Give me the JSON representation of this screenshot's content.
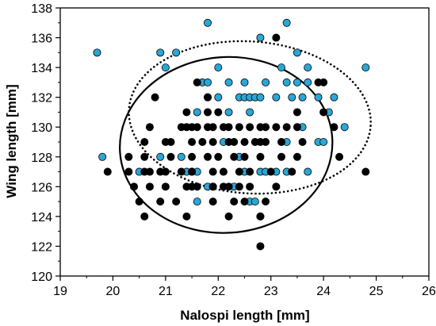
{
  "chart_data": {
    "type": "scatter",
    "title": "",
    "xlabel": "Nalospi length [mm]",
    "ylabel": "Wing length [mm]",
    "xlim": [
      19,
      26
    ],
    "ylim": [
      120,
      138
    ],
    "xticks": [
      19,
      20,
      21,
      22,
      23,
      24,
      25,
      26
    ],
    "yticks": [
      120,
      122,
      124,
      126,
      128,
      130,
      132,
      134,
      136,
      138
    ],
    "legend": "none",
    "grid": false,
    "series": [
      {
        "color": "#2aa7d6",
        "marker": "circle",
        "points": [
          [
            19.7,
            135
          ],
          [
            19.8,
            128
          ],
          [
            20.9,
            135
          ],
          [
            21.0,
            134
          ],
          [
            21.2,
            135
          ],
          [
            21.8,
            137
          ],
          [
            22.0,
            134
          ],
          [
            22.8,
            136
          ],
          [
            23.3,
            137
          ],
          [
            23.5,
            135
          ],
          [
            24.8,
            134
          ],
          [
            23.2,
            134
          ],
          [
            23.7,
            134
          ],
          [
            21.7,
            133
          ],
          [
            21.8,
            133
          ],
          [
            22.2,
            133
          ],
          [
            22.5,
            133
          ],
          [
            22.9,
            133
          ],
          [
            23.3,
            133
          ],
          [
            23.5,
            133
          ],
          [
            23.7,
            133
          ],
          [
            21.8,
            132
          ],
          [
            22.0,
            132
          ],
          [
            22.4,
            132
          ],
          [
            22.5,
            132
          ],
          [
            22.6,
            132
          ],
          [
            22.7,
            132
          ],
          [
            22.8,
            132
          ],
          [
            23.1,
            132
          ],
          [
            23.4,
            132
          ],
          [
            23.6,
            132
          ],
          [
            23.9,
            132
          ],
          [
            24.1,
            131
          ],
          [
            21.6,
            131
          ],
          [
            22.2,
            131
          ],
          [
            22.6,
            131
          ],
          [
            20.9,
            128
          ],
          [
            21.3,
            128
          ],
          [
            21.4,
            127
          ],
          [
            21.6,
            127
          ],
          [
            21.8,
            126
          ],
          [
            21.9,
            126
          ],
          [
            22.5,
            127
          ],
          [
            22.8,
            127
          ],
          [
            23.1,
            127
          ],
          [
            23.3,
            127
          ],
          [
            23.7,
            127
          ],
          [
            23.9,
            129
          ],
          [
            24.0,
            129
          ],
          [
            24.4,
            130
          ],
          [
            24.2,
            132
          ],
          [
            23.3,
            129
          ],
          [
            22.9,
            127
          ],
          [
            22.1,
            129
          ],
          [
            22.3,
            126
          ],
          [
            22.6,
            125
          ],
          [
            22.7,
            125
          ],
          [
            21.6,
            125
          ],
          [
            22.8,
            124
          ],
          [
            21.5,
            127
          ],
          [
            20.5,
            127
          ],
          [
            23.6,
            130
          ],
          [
            22.4,
            128
          ]
        ]
      },
      {
        "color": "#000000",
        "marker": "circle",
        "points": [
          [
            20.8,
            132
          ],
          [
            23.1,
            136
          ],
          [
            21.6,
            133
          ],
          [
            21.8,
            132
          ],
          [
            23.9,
            133
          ],
          [
            24.0,
            133
          ],
          [
            21.4,
            131
          ],
          [
            21.8,
            131
          ],
          [
            22.0,
            131
          ],
          [
            23.5,
            131
          ],
          [
            24.0,
            131
          ],
          [
            20.7,
            130
          ],
          [
            21.3,
            130
          ],
          [
            21.4,
            130
          ],
          [
            21.5,
            130
          ],
          [
            21.6,
            130
          ],
          [
            21.8,
            130
          ],
          [
            21.9,
            130
          ],
          [
            22.1,
            130
          ],
          [
            22.2,
            130
          ],
          [
            22.4,
            130
          ],
          [
            22.6,
            130
          ],
          [
            22.8,
            130
          ],
          [
            22.9,
            130
          ],
          [
            23.1,
            130
          ],
          [
            23.3,
            130
          ],
          [
            23.5,
            130
          ],
          [
            24.2,
            130
          ],
          [
            20.6,
            129
          ],
          [
            21.0,
            129
          ],
          [
            21.1,
            129
          ],
          [
            21.5,
            129
          ],
          [
            21.7,
            129
          ],
          [
            21.9,
            129
          ],
          [
            22.2,
            129
          ],
          [
            22.3,
            129
          ],
          [
            22.5,
            129
          ],
          [
            22.7,
            129
          ],
          [
            22.8,
            129
          ],
          [
            22.9,
            129
          ],
          [
            23.2,
            129
          ],
          [
            23.6,
            129
          ],
          [
            20.3,
            128
          ],
          [
            20.6,
            128
          ],
          [
            21.1,
            128
          ],
          [
            21.5,
            128
          ],
          [
            21.8,
            128
          ],
          [
            22.0,
            128
          ],
          [
            22.3,
            128
          ],
          [
            22.5,
            128
          ],
          [
            22.8,
            128
          ],
          [
            23.2,
            128
          ],
          [
            23.5,
            128
          ],
          [
            24.3,
            128
          ],
          [
            19.9,
            127
          ],
          [
            20.3,
            127
          ],
          [
            20.6,
            127
          ],
          [
            20.7,
            127
          ],
          [
            20.9,
            127
          ],
          [
            21.0,
            127
          ],
          [
            21.3,
            127
          ],
          [
            21.5,
            127
          ],
          [
            21.9,
            127
          ],
          [
            22.1,
            127
          ],
          [
            22.4,
            127
          ],
          [
            22.6,
            127
          ],
          [
            23.0,
            127
          ],
          [
            23.4,
            127
          ],
          [
            24.8,
            127
          ],
          [
            20.4,
            126
          ],
          [
            20.7,
            126
          ],
          [
            21.0,
            126
          ],
          [
            21.4,
            126
          ],
          [
            21.5,
            126
          ],
          [
            21.6,
            126
          ],
          [
            21.9,
            126
          ],
          [
            22.1,
            126
          ],
          [
            22.2,
            126
          ],
          [
            22.4,
            126
          ],
          [
            22.6,
            126
          ],
          [
            23.1,
            126
          ],
          [
            20.5,
            125
          ],
          [
            20.9,
            125
          ],
          [
            21.2,
            125
          ],
          [
            21.9,
            125
          ],
          [
            22.3,
            125
          ],
          [
            22.5,
            125
          ],
          [
            22.9,
            125
          ],
          [
            20.6,
            124
          ],
          [
            21.4,
            124
          ],
          [
            22.2,
            124
          ],
          [
            22.8,
            124
          ],
          [
            22.8,
            122
          ]
        ]
      }
    ],
    "ellipses": [
      {
        "style": "dotted",
        "color": "#000000",
        "center": [
          22.6,
          130.65
        ],
        "semi_axes": [
          2.3,
          5.1
        ],
        "tilt_deg": 4
      },
      {
        "style": "solid",
        "color": "#000000",
        "center": [
          22.15,
          128.8
        ],
        "semi_axes": [
          2.02,
          5.9
        ],
        "tilt_deg": -4
      }
    ]
  }
}
